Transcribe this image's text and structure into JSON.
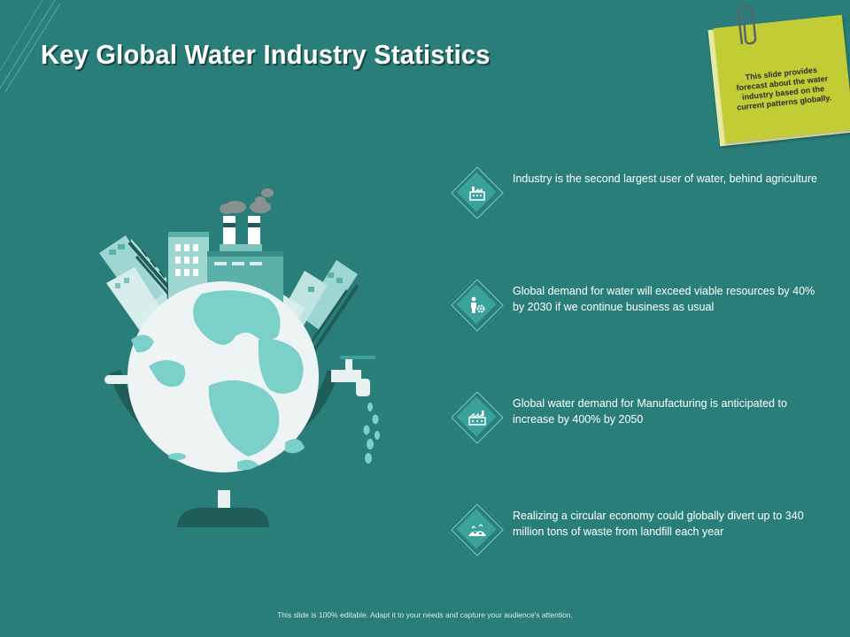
{
  "slide": {
    "title": "Key Global Water Industry Statistics",
    "note": "This slide provides forecast about the water industry based on the current patterns globally.",
    "footer": "This slide is 100% editable. Adapt it to your needs and capture your audience's attention."
  },
  "stats": [
    {
      "icon": "factory-icon",
      "text": "Industry is the second largest user of water, behind agriculture"
    },
    {
      "icon": "person-gear-icon",
      "text": "Global demand for water will exceed viable resources by 40% by 2030 if we continue business as usual"
    },
    {
      "icon": "manufacturing-plant-icon",
      "text": "Global water demand for Manufacturing is anticipated to increase by 400% by 2050"
    },
    {
      "icon": "landfill-icon",
      "text": "Realizing a circular economy could globally divert up to 340 million tons of waste from landfill each year"
    }
  ],
  "colors": {
    "background": "#2a7e7a",
    "sticky_note": "#c2cd35",
    "accent": "#3aa19b"
  }
}
